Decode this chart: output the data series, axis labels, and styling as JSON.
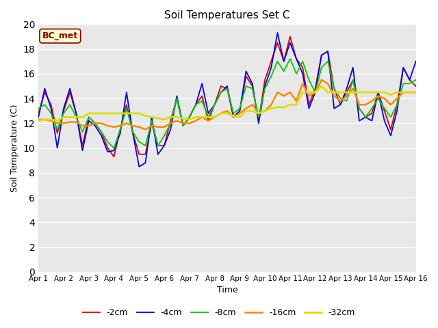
{
  "title": "Soil Temperatures Set C",
  "xlabel": "Time",
  "ylabel": "Soil Temperature (C)",
  "annotation": "BC_met",
  "ylim": [
    0,
    20
  ],
  "xlim": [
    0,
    15
  ],
  "yticks": [
    0,
    2,
    4,
    6,
    8,
    10,
    12,
    14,
    16,
    18,
    20
  ],
  "xtick_labels": [
    "Apr 1",
    "Apr 2",
    "Apr 3",
    "Apr 4",
    "Apr 5",
    "Apr 6",
    "Apr 7",
    "Apr 8",
    "Apr 9",
    "Apr 10",
    "Apr 11",
    "Apr 12",
    "Apr 13",
    "Apr 14",
    "Apr 15",
    "Apr 16"
  ],
  "plot_bg": "#e8e8e8",
  "fig_bg": "#ffffff",
  "grid_color": "#ffffff",
  "series": {
    "-2cm": {
      "color": "#dd0000",
      "lw": 1.3
    },
    "-4cm": {
      "color": "#0000ee",
      "lw": 1.3
    },
    "-8cm": {
      "color": "#00cc00",
      "lw": 1.3
    },
    "-16cm": {
      "color": "#ff8800",
      "lw": 1.8
    },
    "-32cm": {
      "color": "#dddd00",
      "lw": 2.0
    }
  },
  "t": [
    0.0,
    0.25,
    0.5,
    0.75,
    1.0,
    1.25,
    1.5,
    1.75,
    2.0,
    2.25,
    2.5,
    2.75,
    3.0,
    3.25,
    3.5,
    3.75,
    4.0,
    4.25,
    4.5,
    4.75,
    5.0,
    5.25,
    5.5,
    5.75,
    6.0,
    6.25,
    6.5,
    6.75,
    7.0,
    7.25,
    7.5,
    7.75,
    8.0,
    8.25,
    8.5,
    8.75,
    9.0,
    9.25,
    9.5,
    9.75,
    10.0,
    10.25,
    10.5,
    10.75,
    11.0,
    11.25,
    11.5,
    11.75,
    12.0,
    12.25,
    12.5,
    12.75,
    13.0,
    13.25,
    13.5,
    13.75,
    14.0,
    14.25,
    14.5,
    14.75,
    15.0
  ],
  "y_2cm": [
    12.8,
    14.5,
    13.5,
    11.2,
    13.0,
    14.5,
    12.8,
    10.2,
    12.5,
    12.0,
    11.3,
    10.0,
    9.3,
    11.5,
    13.5,
    11.2,
    9.5,
    9.5,
    12.0,
    10.2,
    10.2,
    12.2,
    14.0,
    11.8,
    12.5,
    13.5,
    14.2,
    12.2,
    13.5,
    15.0,
    14.8,
    12.5,
    13.0,
    15.8,
    15.0,
    12.2,
    15.5,
    17.0,
    18.5,
    17.0,
    19.0,
    17.2,
    16.5,
    13.5,
    14.8,
    17.5,
    17.8,
    14.8,
    13.5,
    14.5,
    15.5,
    13.2,
    12.5,
    12.8,
    14.5,
    13.0,
    11.5,
    13.5,
    16.5,
    15.5,
    15.0
  ],
  "y_4cm": [
    12.5,
    14.8,
    13.2,
    10.0,
    13.2,
    14.8,
    12.8,
    9.8,
    12.2,
    11.8,
    11.0,
    9.7,
    9.8,
    11.2,
    14.5,
    11.2,
    8.5,
    8.8,
    12.5,
    9.5,
    10.2,
    11.5,
    14.2,
    11.8,
    12.5,
    13.5,
    15.2,
    12.8,
    13.5,
    14.5,
    15.0,
    12.5,
    13.0,
    16.2,
    15.2,
    12.0,
    15.0,
    16.5,
    19.3,
    17.0,
    18.5,
    17.2,
    16.0,
    13.2,
    14.5,
    17.5,
    17.8,
    13.2,
    13.5,
    14.8,
    16.5,
    12.2,
    12.5,
    12.2,
    14.5,
    12.2,
    11.0,
    13.0,
    16.5,
    15.5,
    17.0
  ],
  "y_8cm": [
    13.2,
    13.5,
    12.8,
    11.5,
    12.8,
    13.5,
    12.5,
    11.3,
    12.5,
    12.0,
    11.3,
    10.5,
    10.0,
    11.5,
    13.2,
    11.3,
    10.5,
    10.2,
    12.2,
    10.2,
    11.0,
    12.0,
    14.0,
    11.8,
    12.5,
    13.5,
    13.8,
    12.5,
    13.5,
    14.5,
    14.8,
    12.8,
    13.2,
    15.0,
    14.8,
    12.5,
    14.8,
    15.8,
    17.0,
    16.2,
    17.2,
    16.0,
    17.0,
    15.5,
    14.5,
    16.5,
    17.0,
    14.8,
    14.0,
    13.8,
    15.5,
    13.2,
    12.5,
    13.2,
    14.0,
    13.2,
    12.5,
    13.5,
    15.2,
    15.2,
    15.5
  ],
  "y_16cm": [
    12.3,
    12.3,
    12.2,
    12.0,
    12.0,
    12.1,
    12.1,
    11.8,
    11.8,
    12.0,
    12.0,
    11.8,
    11.7,
    11.8,
    12.0,
    11.8,
    11.7,
    11.5,
    11.8,
    11.7,
    11.7,
    12.0,
    12.2,
    12.0,
    12.0,
    12.2,
    12.5,
    12.2,
    12.5,
    12.8,
    13.0,
    12.5,
    12.8,
    13.2,
    13.5,
    12.8,
    13.0,
    13.5,
    14.5,
    14.2,
    14.5,
    13.8,
    15.2,
    14.2,
    14.5,
    15.5,
    15.2,
    14.2,
    13.8,
    14.2,
    14.8,
    13.5,
    13.5,
    13.8,
    14.2,
    14.0,
    13.5,
    14.0,
    14.5,
    14.5,
    14.5
  ],
  "y_32cm": [
    12.2,
    12.3,
    12.3,
    12.2,
    12.5,
    12.5,
    12.5,
    12.5,
    12.8,
    12.8,
    12.8,
    12.8,
    12.8,
    12.8,
    12.8,
    12.8,
    12.8,
    12.6,
    12.5,
    12.4,
    12.3,
    12.5,
    12.5,
    12.4,
    12.3,
    12.5,
    12.5,
    12.5,
    12.5,
    12.8,
    12.8,
    12.6,
    12.5,
    13.0,
    13.0,
    12.8,
    13.0,
    13.2,
    13.3,
    13.3,
    13.5,
    13.5,
    14.5,
    14.5,
    14.5,
    15.0,
    14.5,
    14.5,
    14.5,
    14.5,
    14.5,
    14.5,
    14.5,
    14.5,
    14.5,
    14.5,
    14.3,
    14.5,
    14.5,
    14.5,
    14.5
  ]
}
